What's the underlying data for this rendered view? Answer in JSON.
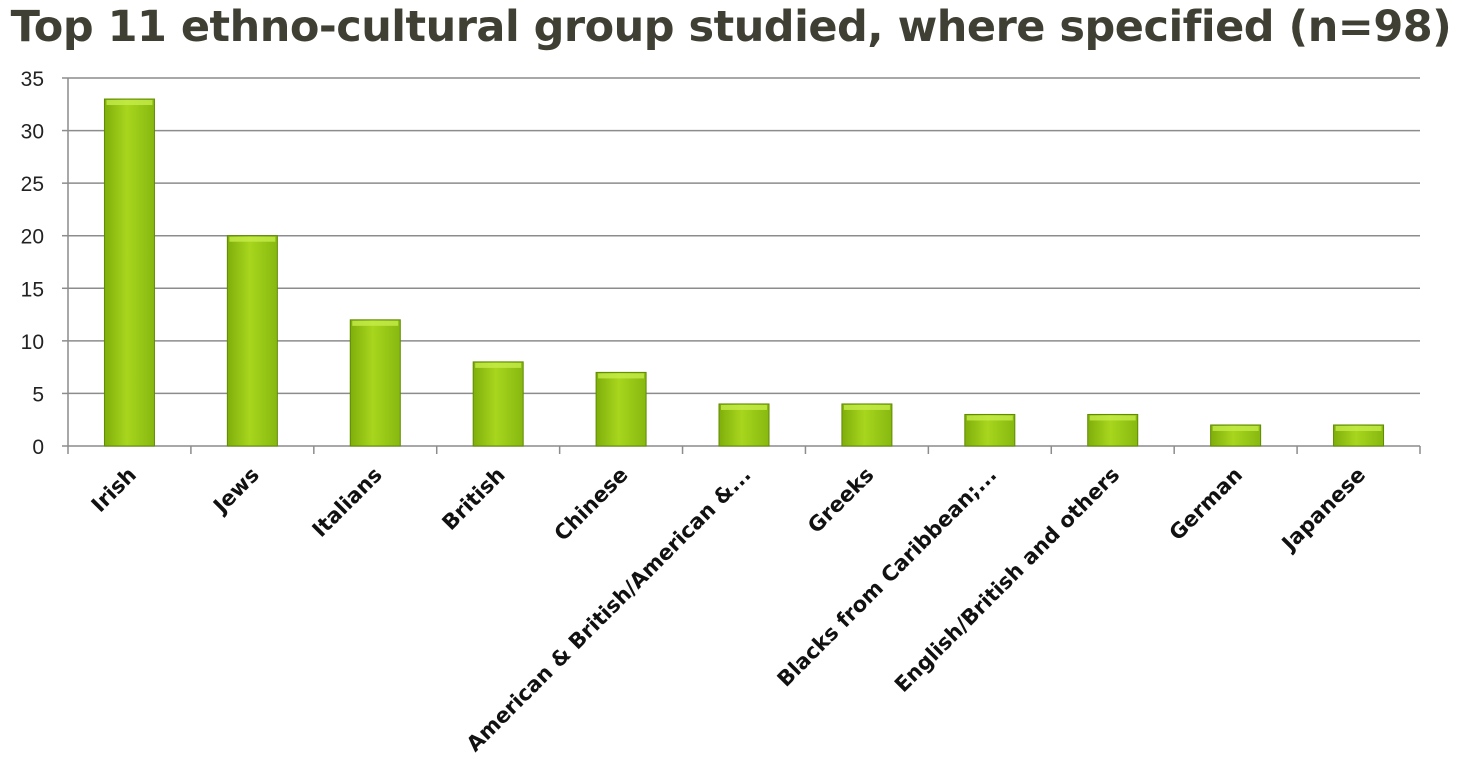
{
  "chart_data": {
    "type": "bar",
    "title": "Top 11 ethno-cultural group studied, where specified (n=98)",
    "categories": [
      "Irish",
      "Jews",
      "Italians",
      "British",
      "Chinese",
      "American & British/American &...",
      "Greeks",
      "Blacks from Caribbean;...",
      "English/British and others",
      "German",
      "Japanese"
    ],
    "values": [
      33,
      20,
      12,
      8,
      7,
      4,
      4,
      3,
      3,
      2,
      2
    ],
    "ylim": [
      0,
      35
    ],
    "yticks": [
      "0",
      "5",
      "10",
      "15",
      "20",
      "25",
      "30",
      "35"
    ],
    "xlabel": "",
    "ylabel": "",
    "grid": true,
    "legend": "none",
    "colors": {
      "bar": "#9ccc16",
      "bar_edge": "#5f8a00",
      "grid": "#8c8c8c",
      "axis": "#8c8c8c"
    }
  }
}
